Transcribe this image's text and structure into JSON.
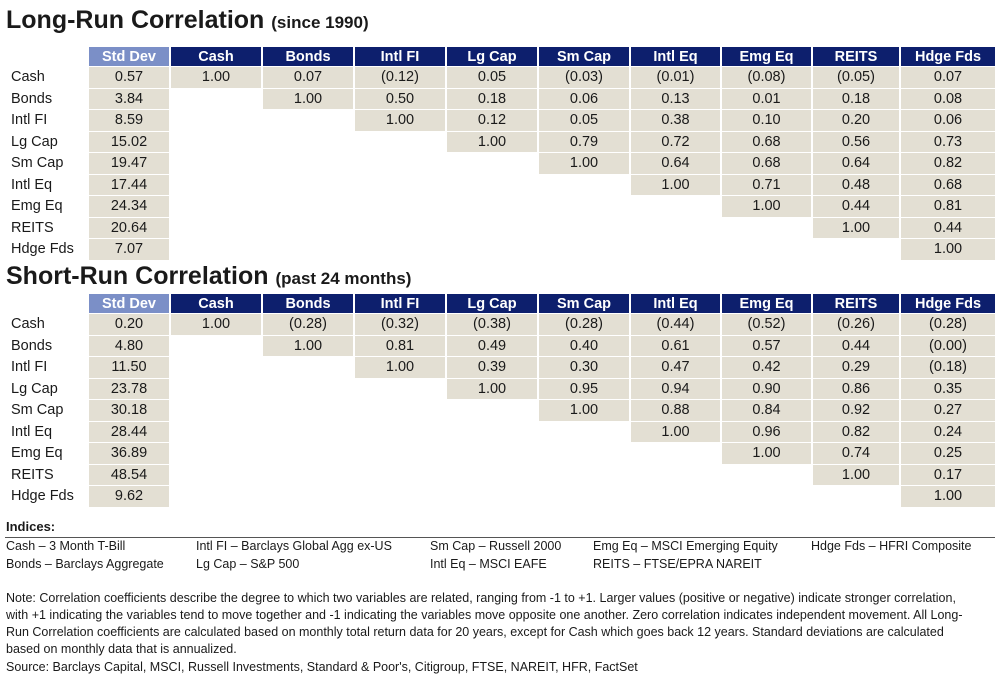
{
  "long_run": {
    "title": "Long-Run Correlation",
    "subtitle": "(since 1990)",
    "headers": [
      "Std Dev",
      "Cash",
      "Bonds",
      "Intl FI",
      "Lg Cap",
      "Sm Cap",
      "Intl Eq",
      "Emg Eq",
      "REITS",
      "Hdge Fds"
    ],
    "rows": [
      {
        "label": "Cash",
        "std": "0.57",
        "values": [
          "1.00",
          "0.07",
          "(0.12)",
          "0.05",
          "(0.03)",
          "(0.01)",
          "(0.08)",
          "(0.05)",
          "0.07"
        ]
      },
      {
        "label": "Bonds",
        "std": "3.84",
        "values": [
          "1.00",
          "0.50",
          "0.18",
          "0.06",
          "0.13",
          "0.01",
          "0.18",
          "0.08"
        ]
      },
      {
        "label": "Intl FI",
        "std": "8.59",
        "values": [
          "1.00",
          "0.12",
          "0.05",
          "0.38",
          "0.10",
          "0.20",
          "0.06"
        ]
      },
      {
        "label": "Lg Cap",
        "std": "15.02",
        "values": [
          "1.00",
          "0.79",
          "0.72",
          "0.68",
          "0.56",
          "0.73"
        ]
      },
      {
        "label": "Sm Cap",
        "std": "19.47",
        "values": [
          "1.00",
          "0.64",
          "0.68",
          "0.64",
          "0.82"
        ]
      },
      {
        "label": "Intl Eq",
        "std": "17.44",
        "values": [
          "1.00",
          "0.71",
          "0.48",
          "0.68"
        ]
      },
      {
        "label": "Emg Eq",
        "std": "24.34",
        "values": [
          "1.00",
          "0.44",
          "0.81"
        ]
      },
      {
        "label": "REITS",
        "std": "20.64",
        "values": [
          "1.00",
          "0.44"
        ]
      },
      {
        "label": "Hdge Fds",
        "std": "7.07",
        "values": [
          "1.00"
        ]
      }
    ]
  },
  "short_run": {
    "title": "Short-Run Correlation",
    "subtitle": "(past 24 months)",
    "headers": [
      "Std Dev",
      "Cash",
      "Bonds",
      "Intl FI",
      "Lg Cap",
      "Sm Cap",
      "Intl Eq",
      "Emg Eq",
      "REITS",
      "Hdge Fds"
    ],
    "rows": [
      {
        "label": "Cash",
        "std": "0.20",
        "values": [
          "1.00",
          "(0.28)",
          "(0.32)",
          "(0.38)",
          "(0.28)",
          "(0.44)",
          "(0.52)",
          "(0.26)",
          "(0.28)"
        ]
      },
      {
        "label": "Bonds",
        "std": "4.80",
        "values": [
          "1.00",
          "0.81",
          "0.49",
          "0.40",
          "0.61",
          "0.57",
          "0.44",
          "(0.00)"
        ]
      },
      {
        "label": "Intl FI",
        "std": "11.50",
        "values": [
          "1.00",
          "0.39",
          "0.30",
          "0.47",
          "0.42",
          "0.29",
          "(0.18)"
        ]
      },
      {
        "label": "Lg Cap",
        "std": "23.78",
        "values": [
          "1.00",
          "0.95",
          "0.94",
          "0.90",
          "0.86",
          "0.35"
        ]
      },
      {
        "label": "Sm Cap",
        "std": "30.18",
        "values": [
          "1.00",
          "0.88",
          "0.84",
          "0.92",
          "0.27"
        ]
      },
      {
        "label": "Intl Eq",
        "std": "28.44",
        "values": [
          "1.00",
          "0.96",
          "0.82",
          "0.24"
        ]
      },
      {
        "label": "Emg Eq",
        "std": "36.89",
        "values": [
          "1.00",
          "0.74",
          "0.25"
        ]
      },
      {
        "label": "REITS",
        "std": "48.54",
        "values": [
          "1.00",
          "0.17"
        ]
      },
      {
        "label": "Hdge Fds",
        "std": "9.62",
        "values": [
          "1.00"
        ]
      }
    ]
  },
  "indices": {
    "title": "Indices:",
    "items": [
      "Cash – 3 Month T-Bill",
      "Intl FI – Barclays Global Agg ex-US",
      "Sm Cap – Russell 2000",
      "Emg Eq – MSCI Emerging Equity",
      "Hdge Fds – HFRI Composite",
      "Bonds – Barclays Aggregate",
      "Lg Cap – S&P 500",
      "Intl Eq – MSCI EAFE",
      "REITS – FTSE/EPRA NAREIT"
    ]
  },
  "note": "Note: Correlation coefficients describe the degree to which two variables are related, ranging from -1 to +1. Larger values (positive or negative) indicate stronger correlation, with +1 indicating the variables tend to move together and -1 indicating the variables move opposite one another. Zero correlation indicates independent movement. All Long-Run Correlation coefficients are calculated based on monthly total return data for 20 years, except for Cash which goes back 12 years. Standard deviations are calculated based on monthly data that is annualized.",
  "source": "Source: Barclays Capital, MSCI, Russell Investments, Standard & Poor's, Citigroup, FTSE, NAREIT, HFR, FactSet",
  "colors": {
    "header_navy": "#0d1f6d",
    "header_std_dev": "#7b8fc7",
    "cell_fill": "#e3dfd3"
  }
}
